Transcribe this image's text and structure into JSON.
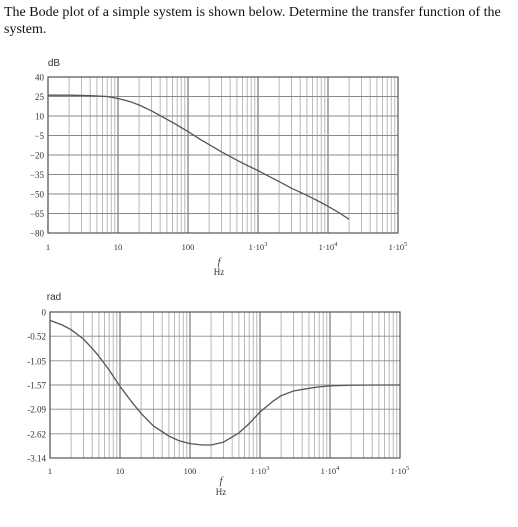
{
  "question": "The Bode plot of a simple system is shown below. Determine the transfer function of the system.",
  "chart_data": [
    {
      "type": "line",
      "title": "",
      "ylabel": "dB",
      "xlabel": "f",
      "xunit": "Hz",
      "xscale": "log",
      "xlim": [
        1,
        100000
      ],
      "ylim": [
        -80,
        40
      ],
      "grid": true,
      "x_tick_labels": [
        {
          "x": 1,
          "base": "1",
          "exp": ""
        },
        {
          "x": 10,
          "base": "10",
          "exp": ""
        },
        {
          "x": 100,
          "base": "100",
          "exp": ""
        },
        {
          "x": 1000,
          "base": "1·10",
          "exp": "3"
        },
        {
          "x": 10000,
          "base": "1·10",
          "exp": "4"
        },
        {
          "x": 100000,
          "base": "1·10",
          "exp": "5"
        }
      ],
      "y_tick_labels": [
        {
          "y": 40,
          "text": "40"
        },
        {
          "y": 25,
          "text": "25"
        },
        {
          "y": 10,
          "text": "10"
        },
        {
          "y": -5,
          "text": "−5"
        },
        {
          "y": -20,
          "text": "−20"
        },
        {
          "y": -35,
          "text": "−35"
        },
        {
          "y": -50,
          "text": "−50"
        },
        {
          "y": -65,
          "text": "−65"
        },
        {
          "y": -80,
          "text": "−80"
        }
      ],
      "series": [
        {
          "x": [
            1,
            2,
            4,
            7,
            10,
            15,
            20,
            30,
            50,
            70,
            100,
            150,
            200,
            300,
            500,
            700,
            1000,
            1500,
            2000,
            3000,
            5000,
            7000,
            10000,
            15000,
            20000
          ],
          "y": [
            26,
            26,
            25.7,
            25,
            23.5,
            21,
            18.5,
            14,
            7.5,
            3,
            -2,
            -8,
            -12,
            -17.5,
            -24,
            -28,
            -32,
            -37,
            -40.5,
            -45.5,
            -51,
            -55,
            -59.5,
            -65,
            -69.5
          ]
        }
      ]
    },
    {
      "type": "line",
      "title": "",
      "ylabel": "rad",
      "xlabel": "f",
      "xunit": "Hz",
      "xscale": "log",
      "xlim": [
        1,
        100000
      ],
      "ylim": [
        -3.14,
        0
      ],
      "grid": true,
      "x_tick_labels": [
        {
          "x": 1,
          "base": "1",
          "exp": ""
        },
        {
          "x": 10,
          "base": "10",
          "exp": ""
        },
        {
          "x": 100,
          "base": "100",
          "exp": ""
        },
        {
          "x": 1000,
          "base": "1·10",
          "exp": "3"
        },
        {
          "x": 10000,
          "base": "1·10",
          "exp": "4"
        },
        {
          "x": 100000,
          "base": "1·10",
          "exp": "5"
        }
      ],
      "y_tick_labels": [
        {
          "y": 0,
          "text": "0"
        },
        {
          "y": -0.52,
          "text": "-0.52"
        },
        {
          "y": -1.05,
          "text": "-1.05"
        },
        {
          "y": -1.57,
          "text": "-1.57"
        },
        {
          "y": -2.09,
          "text": "-2.09"
        },
        {
          "y": -2.62,
          "text": "-2.62"
        },
        {
          "y": -3.14,
          "text": "-3.14"
        }
      ],
      "series": [
        {
          "x": [
            1,
            1.5,
            2,
            3,
            4,
            5,
            7,
            10,
            15,
            20,
            30,
            50,
            70,
            100,
            150,
            200,
            300,
            500,
            700,
            1000,
            1500,
            2000,
            3000,
            5000,
            7000,
            10000,
            20000,
            50000,
            100000
          ],
          "y": [
            -0.18,
            -0.28,
            -0.38,
            -0.58,
            -0.78,
            -0.95,
            -1.25,
            -1.6,
            -1.95,
            -2.18,
            -2.45,
            -2.67,
            -2.77,
            -2.83,
            -2.86,
            -2.86,
            -2.8,
            -2.6,
            -2.4,
            -2.15,
            -1.93,
            -1.8,
            -1.7,
            -1.64,
            -1.61,
            -1.59,
            -1.575,
            -1.57,
            -1.57
          ]
        }
      ]
    }
  ]
}
